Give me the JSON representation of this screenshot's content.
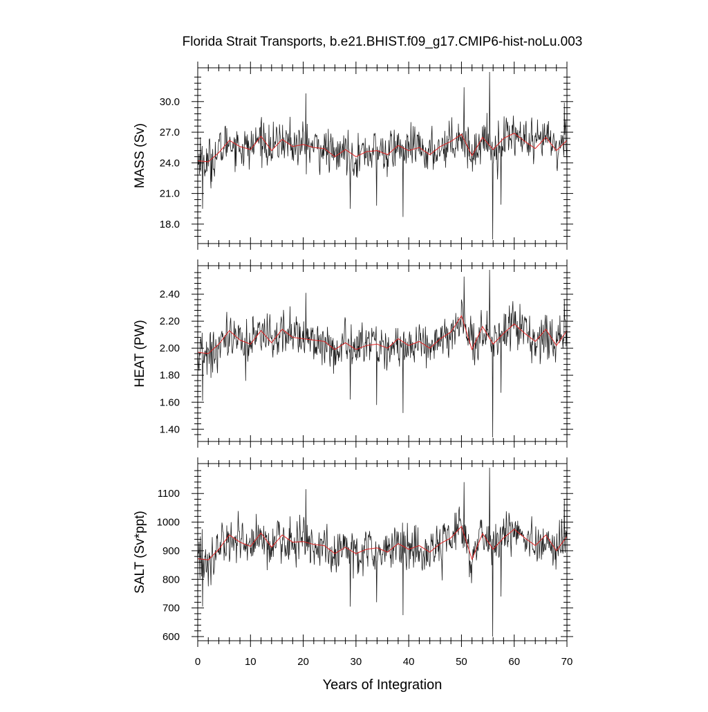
{
  "title": "Florida Strait Transports, b.e21.BHIST.f09_g17.CMIP6-hist-noLu.003",
  "xlabel": "Years of Integration",
  "chart_data": {
    "type": "line",
    "title": "Florida Strait Transports, b.e21.BHIST.f09_g17.CMIP6-hist-noLu.003",
    "xlabel": "Years of Integration",
    "xlim": [
      0,
      70
    ],
    "xticks": [
      0,
      10,
      20,
      30,
      40,
      50,
      60,
      70
    ],
    "x_resolution": "monthly",
    "panels": [
      {
        "ylabel": "MASS (Sv)",
        "ylim": [
          16.5,
          32.9
        ],
        "yticks": [
          "18.0",
          "21.0",
          "24.0",
          "27.0",
          "30.0"
        ],
        "series": [
          {
            "style": "raw monthly (black)",
            "color": "#1a1a1a",
            "mean": 25.2,
            "std": 1.3,
            "spikes": [
              [
                0.5,
                26.5
              ],
              [
                0.9,
                19.5
              ],
              [
                2.5,
                21.5
              ],
              [
                17.5,
                28.5
              ],
              [
                20.5,
                30.8
              ],
              [
                28.9,
                19.5
              ],
              [
                33.9,
                19.8
              ],
              [
                38.9,
                18.7
              ],
              [
                50.5,
                31.4
              ],
              [
                55.3,
                32.9
              ],
              [
                55.9,
                16.5
              ],
              [
                57.5,
                19.9
              ],
              [
                69.5,
                29.9
              ]
            ]
          },
          {
            "style": "smoothed (red)",
            "color": "#e02020",
            "x": [
              0,
              2,
              4,
              6,
              8,
              10,
              12,
              14,
              16,
              18,
              20,
              22,
              24,
              26,
              28,
              30,
              32,
              34,
              36,
              38,
              40,
              42,
              44,
              46,
              48,
              50,
              52,
              54,
              56,
              58,
              60,
              62,
              64,
              66,
              68,
              70
            ],
            "values": [
              24.2,
              24.1,
              25.0,
              26.2,
              25.6,
              25.3,
              26.6,
              25.2,
              26.3,
              25.6,
              25.8,
              25.5,
              25.4,
              24.6,
              25.3,
              24.6,
              25.1,
              25.2,
              24.8,
              25.7,
              25.2,
              25.5,
              24.8,
              25.6,
              26.1,
              26.8,
              24.7,
              26.5,
              25.3,
              26.4,
              26.9,
              26.1,
              25.4,
              26.5,
              25.2,
              26.2
            ]
          }
        ]
      },
      {
        "ylabel": "HEAT (PW)",
        "ylim": [
          1.34,
          2.58
        ],
        "yticks": [
          "1.40",
          "1.60",
          "1.80",
          "2.00",
          "2.20",
          "2.40"
        ],
        "series": [
          {
            "style": "raw monthly (black)",
            "color": "#1a1a1a",
            "mean": 2.04,
            "std": 0.1,
            "spikes": [
              [
                0.5,
                2.06
              ],
              [
                0.9,
                1.61
              ],
              [
                2.5,
                1.78
              ],
              [
                17.5,
                2.31
              ],
              [
                20.5,
                2.41
              ],
              [
                28.9,
                1.62
              ],
              [
                33.9,
                1.58
              ],
              [
                38.9,
                1.52
              ],
              [
                50.5,
                2.53
              ],
              [
                55.3,
                2.58
              ],
              [
                55.9,
                1.34
              ],
              [
                57.5,
                1.67
              ],
              [
                69.5,
                2.36
              ]
            ]
          },
          {
            "style": "smoothed (red)",
            "color": "#e02020",
            "x": [
              0,
              2,
              4,
              6,
              8,
              10,
              12,
              14,
              16,
              18,
              20,
              22,
              24,
              26,
              28,
              30,
              32,
              34,
              36,
              38,
              40,
              42,
              44,
              46,
              48,
              50,
              52,
              54,
              56,
              58,
              60,
              62,
              64,
              66,
              68,
              70
            ],
            "values": [
              1.97,
              1.96,
              2.03,
              2.13,
              2.06,
              2.03,
              2.13,
              2.04,
              2.14,
              2.08,
              2.07,
              2.06,
              2.05,
              1.99,
              2.04,
              1.99,
              2.02,
              2.03,
              2.0,
              2.07,
              2.02,
              2.05,
              2.0,
              2.07,
              2.12,
              2.24,
              1.99,
              2.16,
              2.03,
              2.11,
              2.18,
              2.11,
              2.05,
              2.14,
              2.02,
              2.13
            ]
          }
        ]
      },
      {
        "ylabel": "SALT (Sv*ppt)",
        "ylim": [
          600,
          1190
        ],
        "yticks": [
          "600",
          "700",
          "800",
          "900",
          "1000",
          "1100"
        ],
        "series": [
          {
            "style": "raw monthly (black)",
            "color": "#1a1a1a",
            "mean": 910,
            "std": 48,
            "spikes": [
              [
                0.5,
                950
              ],
              [
                0.9,
                705
              ],
              [
                2.5,
                780
              ],
              [
                17.5,
                1020
              ],
              [
                20.5,
                1115
              ],
              [
                28.9,
                705
              ],
              [
                33.9,
                720
              ],
              [
                38.9,
                675
              ],
              [
                50.5,
                1140
              ],
              [
                55.3,
                1190
              ],
              [
                55.9,
                600
              ],
              [
                57.5,
                740
              ],
              [
                69.5,
                1080
              ]
            ]
          },
          {
            "style": "smoothed (red)",
            "color": "#e02020",
            "x": [
              0,
              2,
              4,
              6,
              8,
              10,
              12,
              14,
              16,
              18,
              20,
              22,
              24,
              26,
              28,
              30,
              32,
              34,
              36,
              38,
              40,
              42,
              44,
              46,
              48,
              50,
              52,
              54,
              56,
              58,
              60,
              62,
              64,
              66,
              68,
              70
            ],
            "values": [
              872,
              868,
              905,
              955,
              930,
              915,
              962,
              912,
              955,
              930,
              932,
              922,
              918,
              890,
              912,
              890,
              905,
              910,
              895,
              925,
              905,
              918,
              895,
              925,
              945,
              985,
              870,
              960,
              905,
              945,
              975,
              945,
              918,
              955,
              900,
              950
            ]
          }
        ]
      }
    ]
  }
}
